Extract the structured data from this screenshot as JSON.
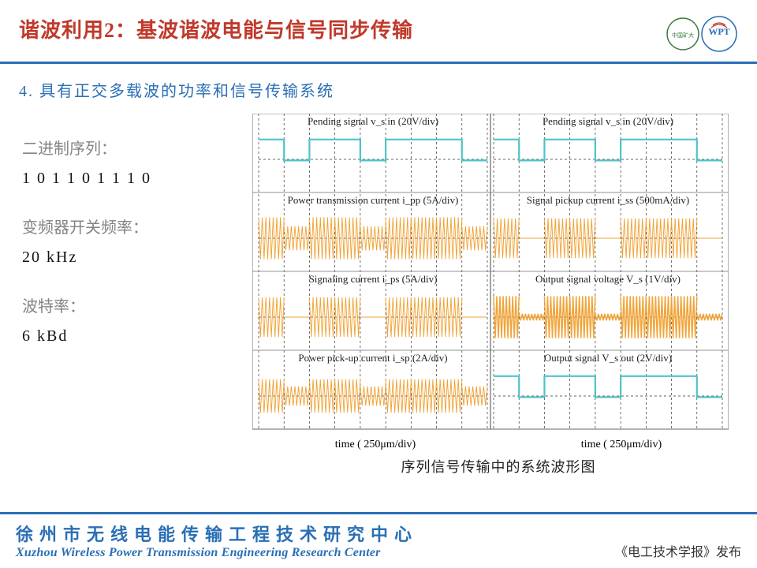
{
  "header": {
    "title": "谐波利用2：基波谐波电能与信号同步传输"
  },
  "subtitle": "4. 具有正交多载波的功率和信号传输系统",
  "params": {
    "binary_label": "二进制序列：",
    "binary_value": "1 0 1 1 0 1 1 1 0",
    "freq_label": "变频器开关频率：",
    "freq_value": "20 kHz",
    "baud_label": "波特率：",
    "baud_value": "6 kBd"
  },
  "scope": {
    "caption": "序列信号传输中的系统波形图",
    "grid_color": "#444444",
    "dash_color": "#333333",
    "square_color": "#4ec3c9",
    "burst_color": "#f0a030",
    "bg_color": "#ffffff",
    "binary_sequence": [
      1,
      0,
      1,
      1,
      0,
      1,
      1,
      1,
      0
    ],
    "left_panels": [
      {
        "label": "Pending signal v_s in (20V/div)",
        "type": "square"
      },
      {
        "label": "Power transmission current i_pp (5A/div)",
        "type": "burst_amp"
      },
      {
        "label": "Signaling current i_ps (5A/div)",
        "type": "burst_gap"
      },
      {
        "label": "Power pick-up current i_sp (2A/div)",
        "type": "burst_amp_small"
      }
    ],
    "right_panels": [
      {
        "label": "Pending signal v_s in (20V/div)",
        "type": "square"
      },
      {
        "label": "Signal pickup current i_ss (500mA/div)",
        "type": "burst_gap"
      },
      {
        "label": "Output signal voltage V_s (1V/div)",
        "type": "envelope"
      },
      {
        "label": "Output signal V_s out (2V/div)",
        "type": "square_out"
      }
    ],
    "x_axis_left": "time ( 250μm/div)",
    "x_axis_right": "time ( 250μm/div)"
  },
  "footer": {
    "cn": "徐州市无线电能传输工程技术研究中心",
    "en": "Xuzhou Wireless Power Transmission Engineering Research Center",
    "right": "《电工技术学报》发布"
  }
}
